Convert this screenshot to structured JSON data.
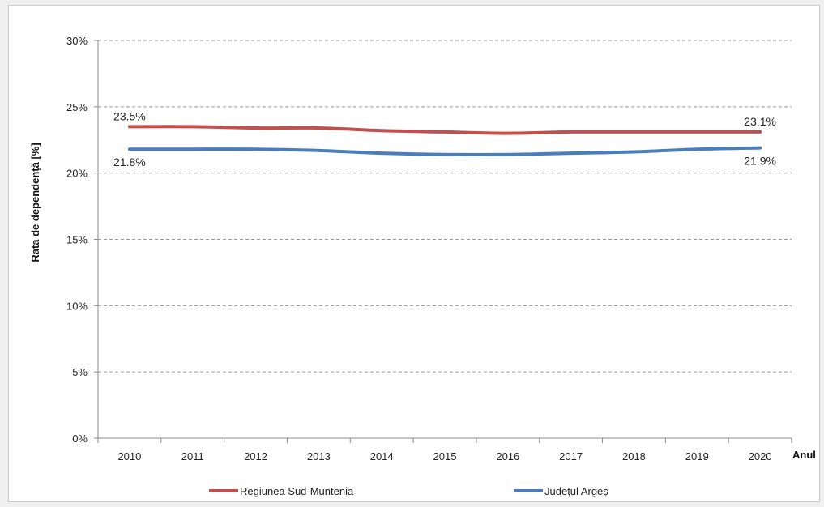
{
  "chart_data": {
    "type": "line",
    "title": "",
    "xlabel": "Anul",
    "ylabel": "Rata de dependență [%]",
    "ylim": [
      0,
      30
    ],
    "yticks": [
      "0%",
      "5%",
      "10%",
      "15%",
      "20%",
      "25%",
      "30%"
    ],
    "ytick_values": [
      0,
      5,
      10,
      15,
      20,
      25,
      30
    ],
    "categories": [
      "2010",
      "2011",
      "2012",
      "2013",
      "2014",
      "2015",
      "2016",
      "2017",
      "2018",
      "2019",
      "2020"
    ],
    "grid": true,
    "legend_position": "bottom",
    "series": [
      {
        "name": "Regiunea Sud-Muntenia",
        "color": "#c0504d",
        "values": [
          23.5,
          23.5,
          23.4,
          23.4,
          23.2,
          23.1,
          23.0,
          23.1,
          23.1,
          23.1,
          23.1
        ],
        "labels": [
          {
            "index": 0,
            "text": "23.5%"
          },
          {
            "index": 10,
            "text": "23.1%"
          }
        ]
      },
      {
        "name": "Județul Argeș",
        "color": "#4a7ebb",
        "values": [
          21.8,
          21.8,
          21.8,
          21.7,
          21.5,
          21.4,
          21.4,
          21.5,
          21.6,
          21.8,
          21.9
        ],
        "labels": [
          {
            "index": 0,
            "text": "21.8%"
          },
          {
            "index": 10,
            "text": "21.9%"
          }
        ]
      }
    ]
  }
}
